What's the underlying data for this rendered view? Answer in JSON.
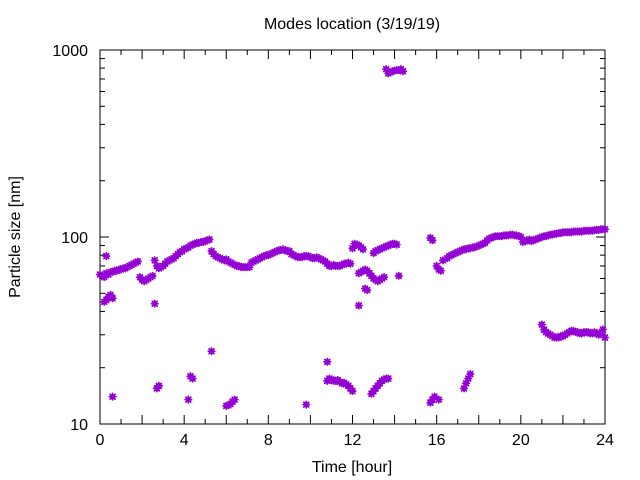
{
  "chart_data": {
    "type": "scatter",
    "title": "Modes location (3/19/19)",
    "xlabel": "Time [hour]",
    "ylabel": "Particle size [nm]",
    "xlim": [
      0,
      24
    ],
    "ylim": [
      10,
      1000
    ],
    "yscale": "log",
    "grid": false,
    "legend": "none",
    "marker_color": "#9400d3",
    "x_ticks": [
      0,
      4,
      8,
      12,
      16,
      20,
      24
    ],
    "x_tick_labels": [
      "0",
      "4",
      "8",
      "12",
      "16",
      "20",
      "24"
    ],
    "y_ticks": [
      10,
      100,
      1000
    ],
    "y_tick_labels": [
      "10",
      "100",
      "1000"
    ],
    "series": [
      {
        "points": [
          [
            0.0,
            63
          ],
          [
            0.1,
            62
          ],
          [
            0.2,
            61
          ],
          [
            0.3,
            64
          ],
          [
            0.4,
            63
          ],
          [
            0.5,
            65
          ],
          [
            0.6,
            65
          ],
          [
            0.7,
            66
          ],
          [
            0.8,
            66
          ],
          [
            0.9,
            67
          ],
          [
            1.0,
            67
          ],
          [
            1.1,
            68
          ],
          [
            1.2,
            68
          ],
          [
            1.3,
            69
          ],
          [
            1.4,
            70
          ],
          [
            1.5,
            71
          ],
          [
            1.6,
            72
          ],
          [
            1.7,
            73
          ],
          [
            1.8,
            74
          ],
          [
            1.9,
            61
          ],
          [
            2.0,
            59
          ],
          [
            2.1,
            58
          ],
          [
            2.2,
            59
          ],
          [
            2.3,
            60
          ],
          [
            2.4,
            61
          ],
          [
            2.5,
            62
          ],
          [
            2.6,
            75
          ],
          [
            2.7,
            70
          ],
          [
            2.8,
            68
          ],
          [
            2.9,
            69
          ],
          [
            3.0,
            70
          ],
          [
            3.1,
            72
          ],
          [
            3.2,
            74
          ],
          [
            3.3,
            75
          ],
          [
            3.4,
            76
          ],
          [
            3.5,
            77
          ],
          [
            3.6,
            79
          ],
          [
            3.7,
            81
          ],
          [
            3.8,
            83
          ],
          [
            3.9,
            84
          ],
          [
            4.0,
            86
          ],
          [
            4.1,
            87
          ],
          [
            4.2,
            88
          ],
          [
            4.3,
            90
          ],
          [
            4.4,
            91
          ],
          [
            4.5,
            92
          ],
          [
            4.6,
            93
          ],
          [
            4.7,
            93
          ],
          [
            4.8,
            94
          ],
          [
            4.9,
            94
          ],
          [
            5.0,
            95
          ],
          [
            5.1,
            96
          ],
          [
            5.2,
            97
          ],
          [
            5.3,
            84
          ],
          [
            5.4,
            81
          ],
          [
            5.5,
            79
          ],
          [
            5.6,
            78
          ],
          [
            5.7,
            77
          ],
          [
            5.8,
            76
          ],
          [
            5.9,
            75
          ],
          [
            6.0,
            76
          ],
          [
            6.1,
            74
          ],
          [
            6.2,
            73
          ],
          [
            6.3,
            72
          ],
          [
            6.4,
            71
          ],
          [
            6.5,
            70
          ],
          [
            6.6,
            70
          ],
          [
            6.7,
            69
          ],
          [
            6.8,
            69
          ],
          [
            6.9,
            69
          ],
          [
            7.0,
            69
          ],
          [
            7.1,
            69
          ],
          [
            7.2,
            73
          ],
          [
            7.3,
            74
          ],
          [
            7.4,
            75
          ],
          [
            7.5,
            76
          ],
          [
            7.6,
            77
          ],
          [
            7.7,
            78
          ],
          [
            7.8,
            79
          ],
          [
            7.9,
            80
          ],
          [
            8.0,
            80
          ],
          [
            8.1,
            81
          ],
          [
            8.2,
            82
          ],
          [
            8.3,
            83
          ],
          [
            8.4,
            84
          ],
          [
            8.5,
            85
          ],
          [
            8.6,
            85
          ],
          [
            8.7,
            86
          ],
          [
            8.8,
            85
          ],
          [
            8.9,
            84
          ],
          [
            9.0,
            84
          ],
          [
            9.1,
            81
          ],
          [
            9.2,
            80
          ],
          [
            9.3,
            79
          ],
          [
            9.4,
            78
          ],
          [
            9.5,
            78
          ],
          [
            9.6,
            78
          ],
          [
            9.7,
            79
          ],
          [
            9.8,
            79
          ],
          [
            9.9,
            79
          ],
          [
            10.0,
            78
          ],
          [
            10.1,
            77
          ],
          [
            10.2,
            77
          ],
          [
            10.3,
            78
          ],
          [
            10.4,
            77
          ],
          [
            10.5,
            76
          ],
          [
            10.6,
            75
          ],
          [
            10.7,
            74
          ],
          [
            10.8,
            72
          ],
          [
            10.9,
            70
          ],
          [
            11.0,
            70
          ],
          [
            11.1,
            71
          ],
          [
            11.2,
            70
          ],
          [
            11.3,
            70
          ],
          [
            11.4,
            70
          ],
          [
            11.5,
            71
          ],
          [
            11.6,
            72
          ],
          [
            11.7,
            72
          ],
          [
            11.8,
            73
          ],
          [
            11.9,
            72
          ],
          [
            12.0,
            87
          ],
          [
            12.1,
            92
          ],
          [
            12.2,
            91
          ],
          [
            12.3,
            90
          ],
          [
            12.4,
            88
          ],
          [
            12.5,
            86
          ],
          [
            13.0,
            82
          ],
          [
            13.1,
            84
          ],
          [
            13.2,
            85
          ],
          [
            13.3,
            86
          ],
          [
            13.4,
            87
          ],
          [
            13.5,
            88
          ],
          [
            13.6,
            89
          ],
          [
            13.7,
            90
          ],
          [
            13.8,
            91
          ],
          [
            13.9,
            92
          ],
          [
            14.0,
            92
          ],
          [
            14.1,
            91
          ],
          [
            15.7,
            99
          ],
          [
            15.8,
            96
          ],
          [
            16.0,
            70
          ],
          [
            16.1,
            67
          ],
          [
            16.2,
            66
          ],
          [
            16.3,
            75
          ],
          [
            16.5,
            77
          ],
          [
            16.6,
            79
          ],
          [
            16.7,
            80
          ],
          [
            16.8,
            81
          ],
          [
            16.9,
            82
          ],
          [
            17.0,
            83
          ],
          [
            17.1,
            84
          ],
          [
            17.2,
            85
          ],
          [
            17.3,
            86
          ],
          [
            17.4,
            86
          ],
          [
            17.5,
            87
          ],
          [
            17.6,
            87
          ],
          [
            17.7,
            88
          ],
          [
            17.8,
            88
          ],
          [
            17.9,
            89
          ],
          [
            18.0,
            90
          ],
          [
            18.1,
            91
          ],
          [
            18.2,
            92
          ],
          [
            18.3,
            93
          ],
          [
            18.4,
            96
          ],
          [
            18.5,
            98
          ],
          [
            18.6,
            99
          ],
          [
            18.7,
            100
          ],
          [
            18.8,
            101
          ],
          [
            18.9,
            101
          ],
          [
            19.0,
            101
          ],
          [
            19.1,
            101
          ],
          [
            19.2,
            102
          ],
          [
            19.3,
            102
          ],
          [
            19.4,
            102
          ],
          [
            19.5,
            103
          ],
          [
            19.6,
            103
          ],
          [
            19.7,
            102
          ],
          [
            19.8,
            102
          ],
          [
            19.9,
            101
          ],
          [
            20.0,
            100
          ],
          [
            20.1,
            94
          ],
          [
            20.2,
            95
          ],
          [
            20.3,
            96
          ],
          [
            20.4,
            97
          ],
          [
            20.5,
            95
          ],
          [
            20.6,
            96
          ],
          [
            20.7,
            97
          ],
          [
            20.8,
            98
          ],
          [
            20.9,
            99
          ],
          [
            21.0,
            100
          ],
          [
            21.1,
            101
          ],
          [
            21.2,
            101
          ],
          [
            21.3,
            102
          ],
          [
            21.4,
            103
          ],
          [
            21.5,
            103
          ],
          [
            21.6,
            104
          ],
          [
            21.7,
            104
          ],
          [
            21.8,
            105
          ],
          [
            21.9,
            105
          ],
          [
            22.0,
            106
          ],
          [
            22.1,
            106
          ],
          [
            22.2,
            106
          ],
          [
            22.3,
            106
          ],
          [
            22.4,
            106
          ],
          [
            22.5,
            107
          ],
          [
            22.6,
            107
          ],
          [
            22.7,
            107
          ],
          [
            22.8,
            107
          ],
          [
            22.9,
            107
          ],
          [
            23.0,
            108
          ],
          [
            23.1,
            108
          ],
          [
            23.2,
            108
          ],
          [
            23.3,
            108
          ],
          [
            23.4,
            108
          ],
          [
            23.5,
            109
          ],
          [
            23.6,
            109
          ],
          [
            23.7,
            109
          ],
          [
            23.8,
            110
          ],
          [
            23.9,
            110
          ],
          [
            24.0,
            110
          ],
          [
            0.2,
            45
          ],
          [
            0.3,
            46
          ],
          [
            0.4,
            48
          ],
          [
            0.5,
            49
          ],
          [
            0.6,
            47
          ],
          [
            0.3,
            79
          ],
          [
            2.6,
            44
          ],
          [
            12.3,
            64
          ],
          [
            12.4,
            65
          ],
          [
            12.5,
            66
          ],
          [
            12.6,
            67
          ],
          [
            12.7,
            66
          ],
          [
            12.8,
            64
          ],
          [
            12.9,
            62
          ],
          [
            13.0,
            60
          ],
          [
            13.1,
            59
          ],
          [
            13.2,
            58
          ],
          [
            13.3,
            59
          ],
          [
            13.4,
            60
          ],
          [
            13.5,
            61
          ],
          [
            12.3,
            43
          ],
          [
            12.6,
            53
          ],
          [
            12.7,
            52
          ],
          [
            14.2,
            62
          ],
          [
            13.6,
            790
          ],
          [
            13.7,
            750
          ],
          [
            13.8,
            760
          ],
          [
            13.9,
            770
          ],
          [
            14.0,
            775
          ],
          [
            14.1,
            780
          ],
          [
            14.2,
            780
          ],
          [
            14.3,
            790
          ],
          [
            14.4,
            770
          ],
          [
            0.6,
            14
          ],
          [
            2.7,
            15.5
          ],
          [
            2.8,
            16
          ],
          [
            4.2,
            13.5
          ],
          [
            4.3,
            18
          ],
          [
            4.4,
            17.5
          ],
          [
            5.3,
            24.5
          ],
          [
            6.0,
            12.5
          ],
          [
            6.1,
            12.6
          ],
          [
            6.2,
            12.8
          ],
          [
            6.3,
            13.2
          ],
          [
            6.4,
            13.5
          ],
          [
            9.8,
            12.7
          ],
          [
            10.8,
            21.5
          ],
          [
            10.8,
            17
          ],
          [
            10.9,
            17.5
          ],
          [
            11.0,
            17.3
          ],
          [
            11.1,
            17
          ],
          [
            11.2,
            17
          ],
          [
            11.3,
            17.2
          ],
          [
            11.4,
            16.8
          ],
          [
            11.5,
            16.5
          ],
          [
            11.6,
            16.6
          ],
          [
            11.7,
            16.3
          ],
          [
            11.8,
            16
          ],
          [
            11.9,
            15.5
          ],
          [
            12.0,
            15
          ],
          [
            12.9,
            14.5
          ],
          [
            13.0,
            15
          ],
          [
            13.1,
            15.5
          ],
          [
            13.2,
            16
          ],
          [
            13.3,
            16.5
          ],
          [
            13.4,
            17
          ],
          [
            13.5,
            17.3
          ],
          [
            13.6,
            17.5
          ],
          [
            13.7,
            17.5
          ],
          [
            15.7,
            13
          ],
          [
            15.8,
            13.5
          ],
          [
            15.9,
            14
          ],
          [
            16.1,
            13.5
          ],
          [
            17.3,
            15.5
          ],
          [
            17.4,
            16.5
          ],
          [
            17.5,
            17.5
          ],
          [
            17.6,
            18.5
          ],
          [
            21.0,
            34
          ],
          [
            21.1,
            32
          ],
          [
            21.2,
            31
          ],
          [
            21.3,
            30.5
          ],
          [
            21.4,
            30
          ],
          [
            21.5,
            29.5
          ],
          [
            21.6,
            29
          ],
          [
            21.7,
            29
          ],
          [
            21.8,
            29
          ],
          [
            21.9,
            29.5
          ],
          [
            22.0,
            29.5
          ],
          [
            22.1,
            30
          ],
          [
            22.2,
            30.5
          ],
          [
            22.3,
            31
          ],
          [
            22.4,
            31.5
          ],
          [
            22.5,
            31.5
          ],
          [
            22.6,
            31
          ],
          [
            22.7,
            31
          ],
          [
            22.8,
            30.5
          ],
          [
            22.9,
            30.5
          ],
          [
            23.0,
            31
          ],
          [
            23.1,
            31
          ],
          [
            23.2,
            31
          ],
          [
            23.3,
            30.5
          ],
          [
            23.4,
            30.5
          ],
          [
            23.5,
            31
          ],
          [
            23.6,
            30.5
          ],
          [
            23.7,
            30
          ],
          [
            23.8,
            30.5
          ],
          [
            23.9,
            32
          ],
          [
            24.0,
            29
          ]
        ]
      }
    ]
  }
}
